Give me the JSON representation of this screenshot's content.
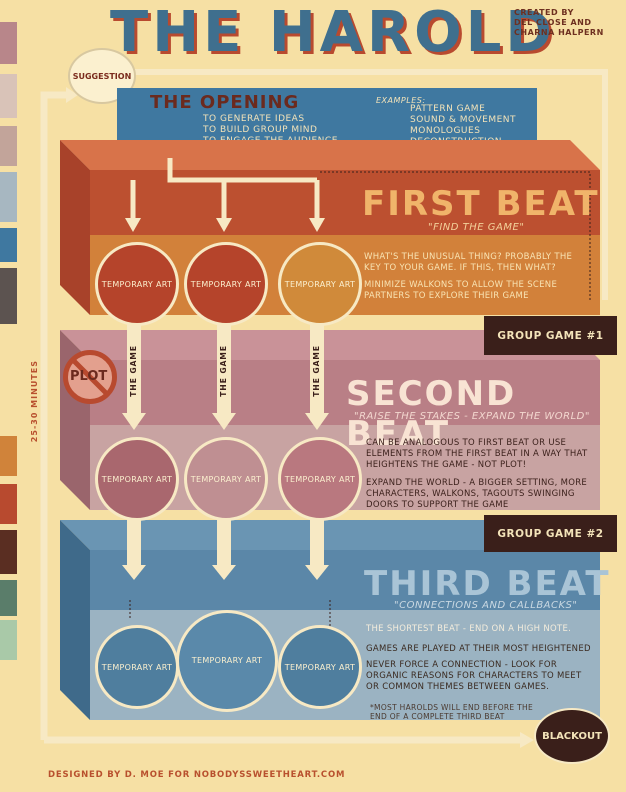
{
  "header": {
    "title": "THE HAROLD",
    "credit_lines": [
      "CREATED BY",
      "DEL CLOSE AND",
      "CHARNA HALPERN"
    ]
  },
  "suggestion": "SUGGESTION",
  "duration": "25-30 MINUTES",
  "opening": {
    "title": "THE OPENING",
    "items": [
      "TO GENERATE IDEAS",
      "TO BUILD GROUP MIND",
      "TO ENGAGE THE AUDIENCE"
    ],
    "examples_label": "EXAMPLES:",
    "examples": [
      "PATTERN GAME",
      "SOUND & MOVEMENT",
      "MONOLOGUES",
      "DECONSTRUCTION"
    ]
  },
  "first_beat": {
    "title": "FIRST BEAT",
    "subtitle": "\"FIND THE GAME\"",
    "text1": "WHAT'S THE UNUSUAL THING? PROBABLY THE KEY TO YOUR GAME. IF THIS, THEN WHAT?",
    "text2": "MINIMIZE WALKONS TO ALLOW THE SCENE PARTNERS TO EXPLORE THEIR GAME",
    "group_game": "GROUP GAME #1"
  },
  "second_beat": {
    "title": "SECOND BEAT",
    "subtitle": "\"RAISE THE STAKES - EXPAND THE WORLD\"",
    "text1": "CAN BE ANALOGOUS TO FIRST BEAT OR USE ELEMENTS FROM THE FIRST BEAT IN A WAY THAT HEIGHTENS THE GAME - NOT PLOT!",
    "text2": "EXPAND THE WORLD - A BIGGER SETTING, MORE CHARACTERS, WALKONS, TAGOUTS SWINGING DOORS TO SUPPORT THE GAME",
    "group_game": "GROUP GAME #2",
    "plot_label": "PLOT"
  },
  "third_beat": {
    "title": "THIRD BEAT",
    "subtitle": "\"CONNECTIONS AND CALLBACKS\"",
    "text1": "THE SHORTEST BEAT - END ON A HIGH NOTE.",
    "text2": "GAMES ARE PLAYED AT THEIR MOST HEIGHTENED",
    "text3": "NEVER FORCE A CONNECTION - LOOK FOR ORGANIC REASONS FOR CHARACTERS TO MEET OR COMMON THEMES BETWEEN GAMES.",
    "footnote": "*MOST HAROLDS WILL END BEFORE THE END OF A COMPLETE THIRD BEAT"
  },
  "arrow_label": "THE GAME",
  "art_label": "TEMPORARY ART",
  "blackout": "BLACKOUT",
  "footer": "DESIGNED BY D. MOE FOR NOBODYSSWEETHEART.COM",
  "colors": {
    "background": "#f6e0a4",
    "blue": "#3f78a0",
    "rust": "#b84a2f",
    "orange": "#d0833a",
    "mauve": "#b97f86",
    "dark": "#3a1f1a"
  },
  "swatches": [
    "#b8868a",
    "#d9c3b8",
    "#c2a49a",
    "#a7b7c1",
    "#3f78a0",
    "#5c5350",
    "#f6e0a4",
    "#d0833a",
    "#b84a2f",
    "#5a2e22",
    "#5a7d6a",
    "#a9c9a8"
  ]
}
